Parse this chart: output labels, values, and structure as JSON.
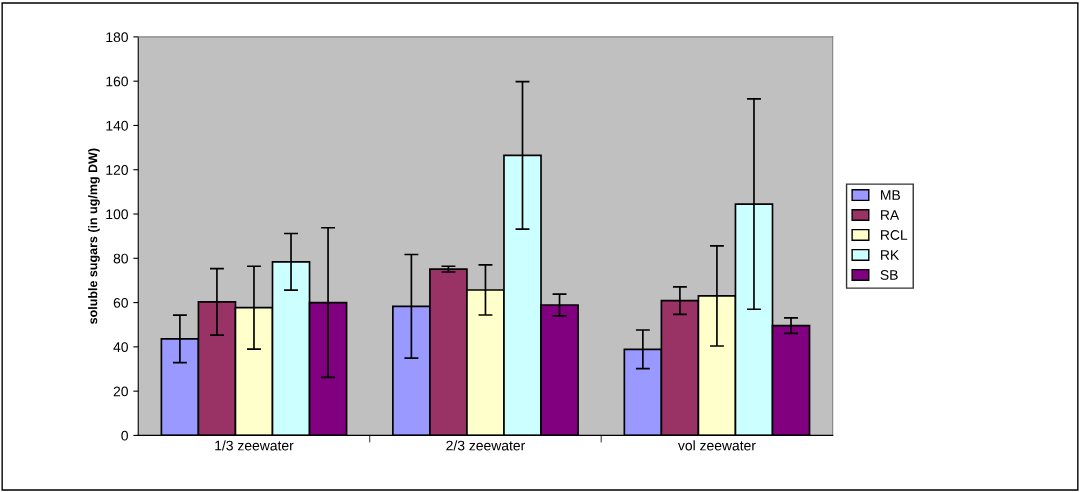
{
  "chart_data": {
    "type": "bar",
    "ylabel": "soluble sugars (in ug/mg DW)",
    "categories": [
      "1/3 zeewater",
      "2/3 zeewater",
      "vol zeewater"
    ],
    "series": [
      {
        "name": "MB",
        "color": "#9999ff",
        "values": [
          43.6,
          58.3,
          38.9
        ],
        "errors": [
          10.7,
          23.4,
          8.7
        ]
      },
      {
        "name": "RA",
        "color": "#993366",
        "values": [
          60.3,
          75.1,
          60.9
        ],
        "errors": [
          15,
          1.3,
          6.2
        ]
      },
      {
        "name": "RCL",
        "color": "#ffffcc",
        "values": [
          57.7,
          65.7,
          63
        ],
        "errors": [
          18.7,
          11.3,
          22.6
        ]
      },
      {
        "name": "RK",
        "color": "#ccffff",
        "values": [
          78.4,
          126.5,
          104.5
        ],
        "errors": [
          12.8,
          33.3,
          47.5
        ]
      },
      {
        "name": "SB",
        "color": "#800080",
        "values": [
          60,
          58.9,
          49.6
        ],
        "errors": [
          33.8,
          4.9,
          3.5
        ]
      }
    ],
    "ylim": [
      0,
      180
    ],
    "yticks": [
      0,
      20,
      40,
      60,
      80,
      100,
      120,
      140,
      160,
      180
    ],
    "grid": false,
    "legend": "right"
  }
}
